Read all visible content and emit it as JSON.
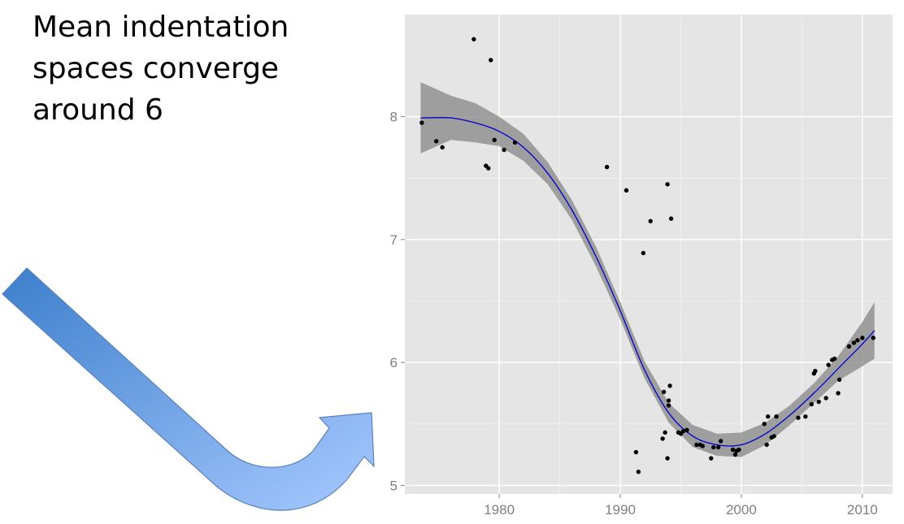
{
  "headline": {
    "lines": [
      "Mean indentation",
      "spaces converge",
      "around 6"
    ]
  },
  "colors": {
    "panel": "#e5e5e5",
    "grid": "#ffffff",
    "points": "#000000",
    "smooth_line": "#0000cc",
    "ribbon": "#8c8c8c",
    "arrow_start": "#3d7fcc",
    "arrow_end": "#9cc2ff"
  },
  "chart_data": {
    "type": "scatter",
    "title": "",
    "xlabel": "",
    "ylabel": "",
    "xlim": [
      1972.2,
      2012.5
    ],
    "ylim": [
      4.93,
      8.83
    ],
    "grid": true,
    "x_ticks": [
      1980,
      1990,
      2000,
      2010
    ],
    "x_tick_labels": [
      "1980",
      "1990",
      "2000",
      "2010"
    ],
    "y_ticks": [
      5,
      6,
      7,
      8
    ],
    "y_tick_labels": [
      "5",
      "6",
      "7",
      "8"
    ],
    "points": [
      [
        1973.6,
        7.95
      ],
      [
        1974.8,
        7.8
      ],
      [
        1975.3,
        7.75
      ],
      [
        1977.9,
        8.63
      ],
      [
        1978.9,
        7.6
      ],
      [
        1979.1,
        7.58
      ],
      [
        1979.3,
        8.46
      ],
      [
        1979.6,
        7.81
      ],
      [
        1980.4,
        7.73
      ],
      [
        1981.3,
        7.79
      ],
      [
        1988.9,
        7.59
      ],
      [
        1990.5,
        7.4
      ],
      [
        1991.3,
        5.27
      ],
      [
        1991.5,
        5.11
      ],
      [
        1991.9,
        6.89
      ],
      [
        1992.5,
        7.15
      ],
      [
        1993.5,
        5.38
      ],
      [
        1993.6,
        5.76
      ],
      [
        1993.7,
        5.43
      ],
      [
        1993.9,
        7.45
      ],
      [
        1993.9,
        5.22
      ],
      [
        1994.0,
        5.65
      ],
      [
        1994.0,
        5.69
      ],
      [
        1994.1,
        5.81
      ],
      [
        1994.2,
        7.17
      ],
      [
        1994.8,
        5.43
      ],
      [
        1995.0,
        5.42
      ],
      [
        1995.2,
        5.44
      ],
      [
        1995.5,
        5.45
      ],
      [
        1996.3,
        5.33
      ],
      [
        1996.6,
        5.33
      ],
      [
        1996.8,
        5.32
      ],
      [
        1997.5,
        5.22
      ],
      [
        1997.7,
        5.31
      ],
      [
        1998.1,
        5.31
      ],
      [
        1998.3,
        5.36
      ],
      [
        1999.3,
        5.29
      ],
      [
        1999.5,
        5.25
      ],
      [
        1999.6,
        5.28
      ],
      [
        1999.8,
        5.29
      ],
      [
        2001.9,
        5.5
      ],
      [
        2002.1,
        5.33
      ],
      [
        2002.2,
        5.56
      ],
      [
        2002.5,
        5.39
      ],
      [
        2002.7,
        5.4
      ],
      [
        2002.9,
        5.56
      ],
      [
        2004.7,
        5.55
      ],
      [
        2005.3,
        5.56
      ],
      [
        2005.8,
        5.66
      ],
      [
        2006.0,
        5.91
      ],
      [
        2006.1,
        5.93
      ],
      [
        2006.4,
        5.68
      ],
      [
        2007.0,
        5.71
      ],
      [
        2007.2,
        5.98
      ],
      [
        2007.5,
        6.02
      ],
      [
        2007.7,
        6.03
      ],
      [
        2008.0,
        5.75
      ],
      [
        2008.1,
        5.86
      ],
      [
        2008.9,
        6.13
      ],
      [
        2009.3,
        6.16
      ],
      [
        2009.6,
        6.18
      ],
      [
        2010.0,
        6.2
      ],
      [
        2010.9,
        6.2
      ]
    ],
    "smooth": {
      "x": [
        1973.5,
        1976,
        1978,
        1980,
        1982,
        1984,
        1986,
        1988,
        1990,
        1992,
        1994,
        1996,
        1998,
        2000,
        2002,
        2004,
        2006,
        2008,
        2010,
        2011
      ],
      "fit": [
        7.99,
        7.99,
        7.95,
        7.88,
        7.75,
        7.54,
        7.24,
        6.86,
        6.42,
        5.94,
        5.59,
        5.4,
        5.33,
        5.33,
        5.42,
        5.57,
        5.75,
        5.95,
        6.15,
        6.26
      ],
      "lower": [
        7.7,
        7.81,
        7.79,
        7.76,
        7.64,
        7.45,
        7.16,
        6.78,
        6.35,
        5.87,
        5.51,
        5.31,
        5.24,
        5.23,
        5.33,
        5.49,
        5.67,
        5.85,
        5.97,
        6.03
      ],
      "upper": [
        8.28,
        8.17,
        8.11,
        8.0,
        7.86,
        7.63,
        7.32,
        6.94,
        6.49,
        6.01,
        5.67,
        5.49,
        5.42,
        5.43,
        5.51,
        5.65,
        5.83,
        6.05,
        6.33,
        6.49
      ]
    }
  }
}
